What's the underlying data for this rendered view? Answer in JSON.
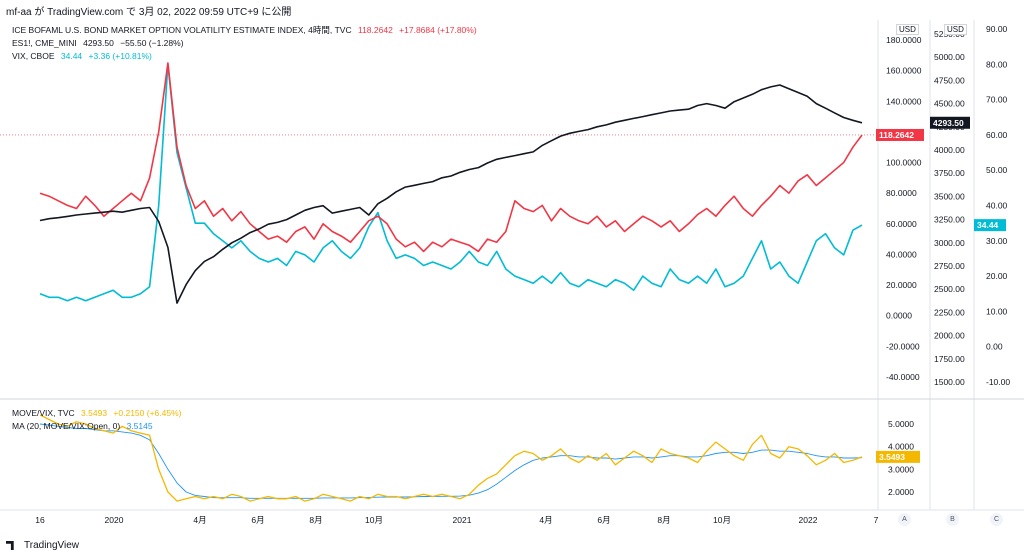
{
  "header": {
    "caption": "mf-aa が TradingView.com で 3月 02, 2022 09:59 UTC+9 に公開"
  },
  "legend": {
    "move": {
      "name": "ICE BOFAML U.S. BOND MARKET OPTION VOLATILITY ESTIMATE INDEX, 4時間, TVC",
      "value": "118.2642",
      "change": "+17.8684 (+17.80%)",
      "color": "#f23645"
    },
    "es": {
      "name": "ES1!, CME_MINI",
      "value": "4293.50",
      "change": "−55.50 (−1.28%)",
      "color": "#131722"
    },
    "vix": {
      "name": "VIX, CBOE",
      "value": "34.44",
      "change": "+3.36 (+10.81%)",
      "color": "#00bcd4"
    },
    "ratio": {
      "name": "MOVE/VIX, TVC",
      "value": "3.5493",
      "change": "+0.2150 (+6.45%)",
      "color": "#f5b800"
    },
    "ma": {
      "name": "MA (20, MOVE/VIX:Open, 0)",
      "value": "3.5145",
      "color": "#2196f3"
    }
  },
  "units": {
    "a": "USD",
    "b": "USD"
  },
  "price_boxes": {
    "move": "118.2642",
    "es": "4293.50",
    "vix": "34.44",
    "ratio": "3.5493"
  },
  "axis_buttons": [
    "A",
    "B",
    "C"
  ],
  "footer": {
    "brand": "TradingView"
  },
  "chart_data": [
    {
      "type": "line",
      "x_tick_labels": [
        "16",
        "2020",
        "4月",
        "6月",
        "8月",
        "10月",
        "2021",
        "4月",
        "6月",
        "8月",
        "10月",
        "2022",
        "7"
      ],
      "scales": {
        "move": {
          "ticks": [
            "180.0000",
            "160.0000",
            "140.0000",
            "120.0000",
            "100.0000",
            "80.0000",
            "60.0000",
            "40.0000",
            "20.0000",
            "0.0000",
            "-20.0000",
            "-40.0000"
          ]
        },
        "es": {
          "ticks": [
            "5250.00",
            "5000.00",
            "4750.00",
            "4500.00",
            "4250.00",
            "4000.00",
            "3750.00",
            "3500.00",
            "3250.00",
            "3000.00",
            "2750.00",
            "2500.00",
            "2250.00",
            "2000.00",
            "1750.00",
            "1500.00"
          ]
        },
        "vix": {
          "ticks": [
            "90.00",
            "80.00",
            "70.00",
            "60.00",
            "50.00",
            "40.00",
            "30.00",
            "20.00",
            "10.00",
            "0.00",
            "-10.00"
          ]
        }
      },
      "series": [
        {
          "name": "MOVE",
          "color": "#f23645",
          "values": [
            80,
            78,
            75,
            72,
            70,
            78,
            72,
            65,
            70,
            75,
            80,
            75,
            90,
            120,
            165,
            110,
            85,
            70,
            75,
            65,
            70,
            62,
            68,
            60,
            55,
            50,
            52,
            48,
            55,
            58,
            50,
            60,
            55,
            52,
            48,
            55,
            62,
            65,
            60,
            50,
            45,
            48,
            42,
            48,
            45,
            50,
            48,
            46,
            42,
            50,
            48,
            55,
            75,
            70,
            68,
            72,
            62,
            70,
            65,
            62,
            60,
            65,
            58,
            62,
            55,
            60,
            65,
            62,
            58,
            62,
            55,
            60,
            66,
            70,
            65,
            72,
            78,
            70,
            65,
            72,
            78,
            85,
            80,
            88,
            92,
            85,
            90,
            95,
            100,
            110,
            118
          ]
        },
        {
          "name": "ES1!",
          "color": "#131722",
          "values": [
            3240,
            3260,
            3270,
            3285,
            3300,
            3310,
            3320,
            3330,
            3340,
            3330,
            3350,
            3370,
            3380,
            3230,
            2950,
            2350,
            2550,
            2700,
            2800,
            2850,
            2930,
            3000,
            3050,
            3110,
            3150,
            3200,
            3220,
            3250,
            3300,
            3350,
            3380,
            3400,
            3320,
            3340,
            3360,
            3380,
            3300,
            3420,
            3480,
            3550,
            3600,
            3620,
            3640,
            3660,
            3700,
            3720,
            3760,
            3790,
            3810,
            3860,
            3900,
            3920,
            3940,
            3960,
            3980,
            4050,
            4100,
            4150,
            4180,
            4200,
            4220,
            4250,
            4270,
            4300,
            4320,
            4340,
            4360,
            4380,
            4400,
            4420,
            4430,
            4440,
            4480,
            4500,
            4480,
            4450,
            4520,
            4560,
            4600,
            4650,
            4680,
            4700,
            4660,
            4620,
            4580,
            4500,
            4450,
            4400,
            4350,
            4320,
            4293.5
          ]
        },
        {
          "name": "VIX",
          "color": "#00bcd4",
          "values": [
            15,
            14,
            14,
            13,
            14,
            13,
            14,
            15,
            16,
            14,
            14,
            15,
            17,
            40,
            80,
            55,
            45,
            35,
            35,
            32,
            30,
            28,
            30,
            27,
            25,
            24,
            25,
            23,
            27,
            26,
            24,
            28,
            30,
            27,
            25,
            28,
            34,
            38,
            30,
            25,
            26,
            25,
            23,
            24,
            23,
            22,
            24,
            27,
            24,
            23,
            27,
            22,
            20,
            19,
            18,
            20,
            18,
            21,
            18,
            17,
            19,
            18,
            17,
            19,
            18,
            16,
            20,
            18,
            17,
            22,
            19,
            18,
            20,
            18,
            22,
            17,
            18,
            20,
            25,
            30,
            22,
            24,
            20,
            18,
            24,
            30,
            32,
            28,
            26,
            33,
            34.44
          ]
        },
        {
          "name": "MOVE/VIX",
          "color": "#f5b800",
          "values": [
            5.4,
            5.2,
            5.0,
            4.9,
            5.1,
            5.0,
            4.8,
            4.7,
            4.6,
            4.9,
            4.7,
            4.6,
            4.5,
            3.0,
            2.0,
            1.6,
            1.7,
            1.8,
            1.7,
            1.8,
            1.7,
            1.9,
            1.8,
            1.6,
            1.7,
            1.8,
            1.7,
            1.7,
            1.8,
            1.6,
            1.7,
            1.9,
            1.8,
            1.7,
            1.6,
            1.8,
            1.7,
            1.9,
            1.8,
            1.8,
            1.7,
            1.8,
            1.9,
            1.8,
            1.9,
            1.8,
            1.7,
            1.9,
            2.3,
            2.6,
            2.8,
            3.2,
            3.6,
            3.8,
            3.7,
            3.4,
            3.6,
            3.9,
            3.5,
            3.3,
            3.6,
            3.4,
            3.7,
            3.2,
            3.5,
            3.8,
            3.6,
            3.3,
            3.9,
            3.7,
            3.6,
            3.5,
            3.3,
            3.8,
            4.2,
            3.9,
            3.6,
            3.4,
            4.1,
            4.5,
            3.7,
            3.5,
            4.0,
            3.9,
            3.6,
            3.2,
            3.4,
            3.7,
            3.3,
            3.4,
            3.5493
          ]
        },
        {
          "name": "MA (20, MOVE/VIX:Open, 0)",
          "color": "#2196f3",
          "values": [
            5.0,
            4.95,
            4.9,
            4.85,
            4.8,
            4.8,
            4.75,
            4.7,
            4.7,
            4.65,
            4.6,
            4.5,
            4.3,
            3.7,
            3.0,
            2.4,
            2.0,
            1.85,
            1.8,
            1.75,
            1.75,
            1.75,
            1.75,
            1.72,
            1.72,
            1.72,
            1.72,
            1.72,
            1.72,
            1.72,
            1.72,
            1.74,
            1.74,
            1.74,
            1.74,
            1.75,
            1.76,
            1.77,
            1.78,
            1.78,
            1.78,
            1.79,
            1.8,
            1.8,
            1.81,
            1.81,
            1.82,
            1.86,
            1.95,
            2.1,
            2.35,
            2.65,
            2.95,
            3.2,
            3.4,
            3.5,
            3.55,
            3.6,
            3.6,
            3.55,
            3.55,
            3.5,
            3.5,
            3.45,
            3.5,
            3.55,
            3.55,
            3.5,
            3.55,
            3.6,
            3.6,
            3.55,
            3.55,
            3.6,
            3.7,
            3.75,
            3.75,
            3.7,
            3.75,
            3.85,
            3.85,
            3.8,
            3.8,
            3.75,
            3.7,
            3.6,
            3.55,
            3.55,
            3.5,
            3.5,
            3.5145
          ]
        }
      ]
    },
    {
      "type": "line",
      "title": "MOVE/VIX",
      "y_tick_labels": [
        "5.0000",
        "4.0000",
        "3.0000",
        "2.0000"
      ]
    }
  ]
}
